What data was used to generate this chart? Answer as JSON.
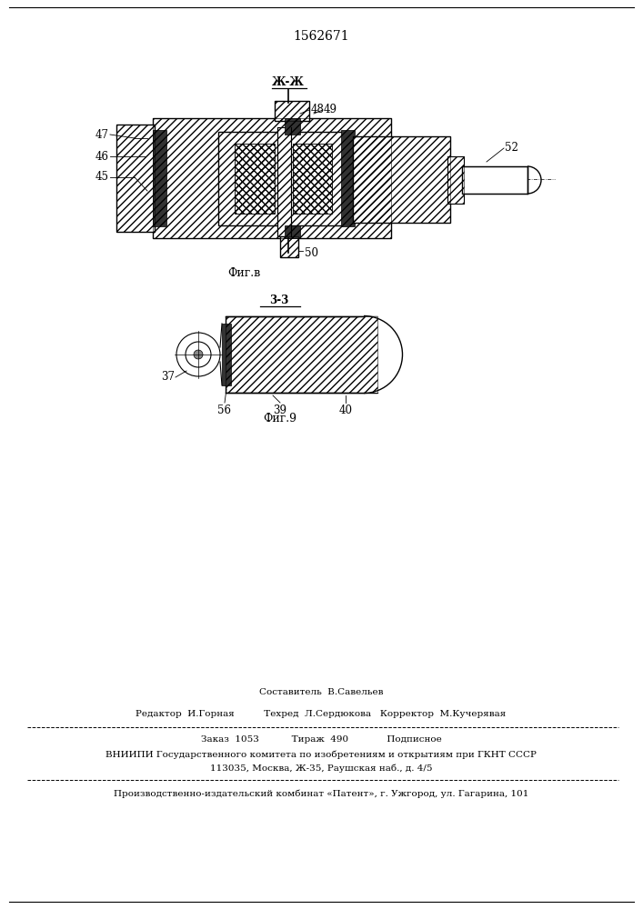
{
  "patent_number": "1562671",
  "background_color": "#ffffff",
  "fig8_label": "Фиг.в",
  "fig9_label": "Фиг.9",
  "section_zh": "Ж-Ж",
  "section_3": "3-3",
  "footer_lines": [
    "Составитель  В.Савельев",
    "Редактор  И.Горная          Техред  Л.Сердюкова   Корректор  М.Кучерявая",
    "Заказ  1053           Тираж  490             Подписное",
    "ВНИИПИ Государственного комитета по изобретениям и открытиям при ГКНТ СССР",
    "113035, Москва, Ж-35, Раушская наб., д. 4/5",
    "Производственно-издательский комбинат «Патент», г. Ужгород, ул. Гагарина, 101"
  ]
}
